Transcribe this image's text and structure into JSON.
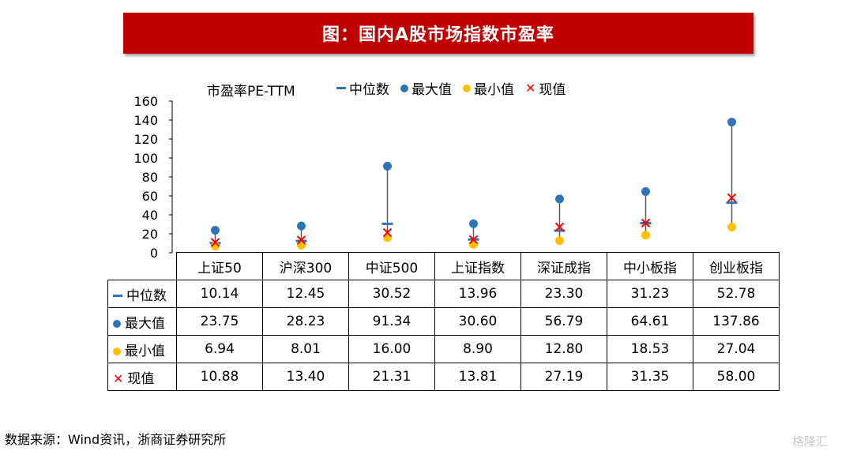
{
  "title": "图：国内A股市场指数市盈率",
  "source": "数据来源：Wind资讯，浙商证券研究所",
  "watermark": "格隆汇",
  "chart_data": {
    "type": "scatter",
    "ylabel": "市盈率PE-TTM",
    "ylim": [
      0,
      160
    ],
    "yticks": [
      0,
      20,
      40,
      60,
      80,
      100,
      120,
      140,
      160
    ],
    "categories": [
      "上证50",
      "沪深300",
      "中证500",
      "上证指数",
      "深证成指",
      "中小板指",
      "创业板指"
    ],
    "series": [
      {
        "name": "中位数",
        "values": [
          10.14,
          12.45,
          30.52,
          13.96,
          23.3,
          31.23,
          52.78
        ],
        "display": [
          "10.14",
          "12.45",
          "30.52",
          "13.96",
          "23.30",
          "31.23",
          "52.78"
        ],
        "color": "#2e75b6",
        "marker": "dash"
      },
      {
        "name": "最大值",
        "values": [
          23.75,
          28.23,
          91.34,
          30.6,
          56.79,
          64.61,
          137.86
        ],
        "display": [
          "23.75",
          "28.23",
          "91.34",
          "30.60",
          "56.79",
          "64.61",
          "137.86"
        ],
        "color": "#2e75b6",
        "marker": "circle"
      },
      {
        "name": "最小值",
        "values": [
          6.94,
          8.01,
          16.0,
          8.9,
          12.8,
          18.53,
          27.04
        ],
        "display": [
          "6.94",
          "8.01",
          "16.00",
          "8.90",
          "12.80",
          "18.53",
          "27.04"
        ],
        "color": "#ffc000",
        "marker": "circle"
      },
      {
        "name": "现值",
        "values": [
          10.88,
          13.4,
          21.31,
          13.81,
          27.19,
          31.35,
          58.0
        ],
        "display": [
          "10.88",
          "13.40",
          "21.31",
          "13.81",
          "27.19",
          "31.35",
          "58.00"
        ],
        "color": "#ff0000",
        "marker": "x"
      }
    ],
    "legend_position": "top"
  }
}
